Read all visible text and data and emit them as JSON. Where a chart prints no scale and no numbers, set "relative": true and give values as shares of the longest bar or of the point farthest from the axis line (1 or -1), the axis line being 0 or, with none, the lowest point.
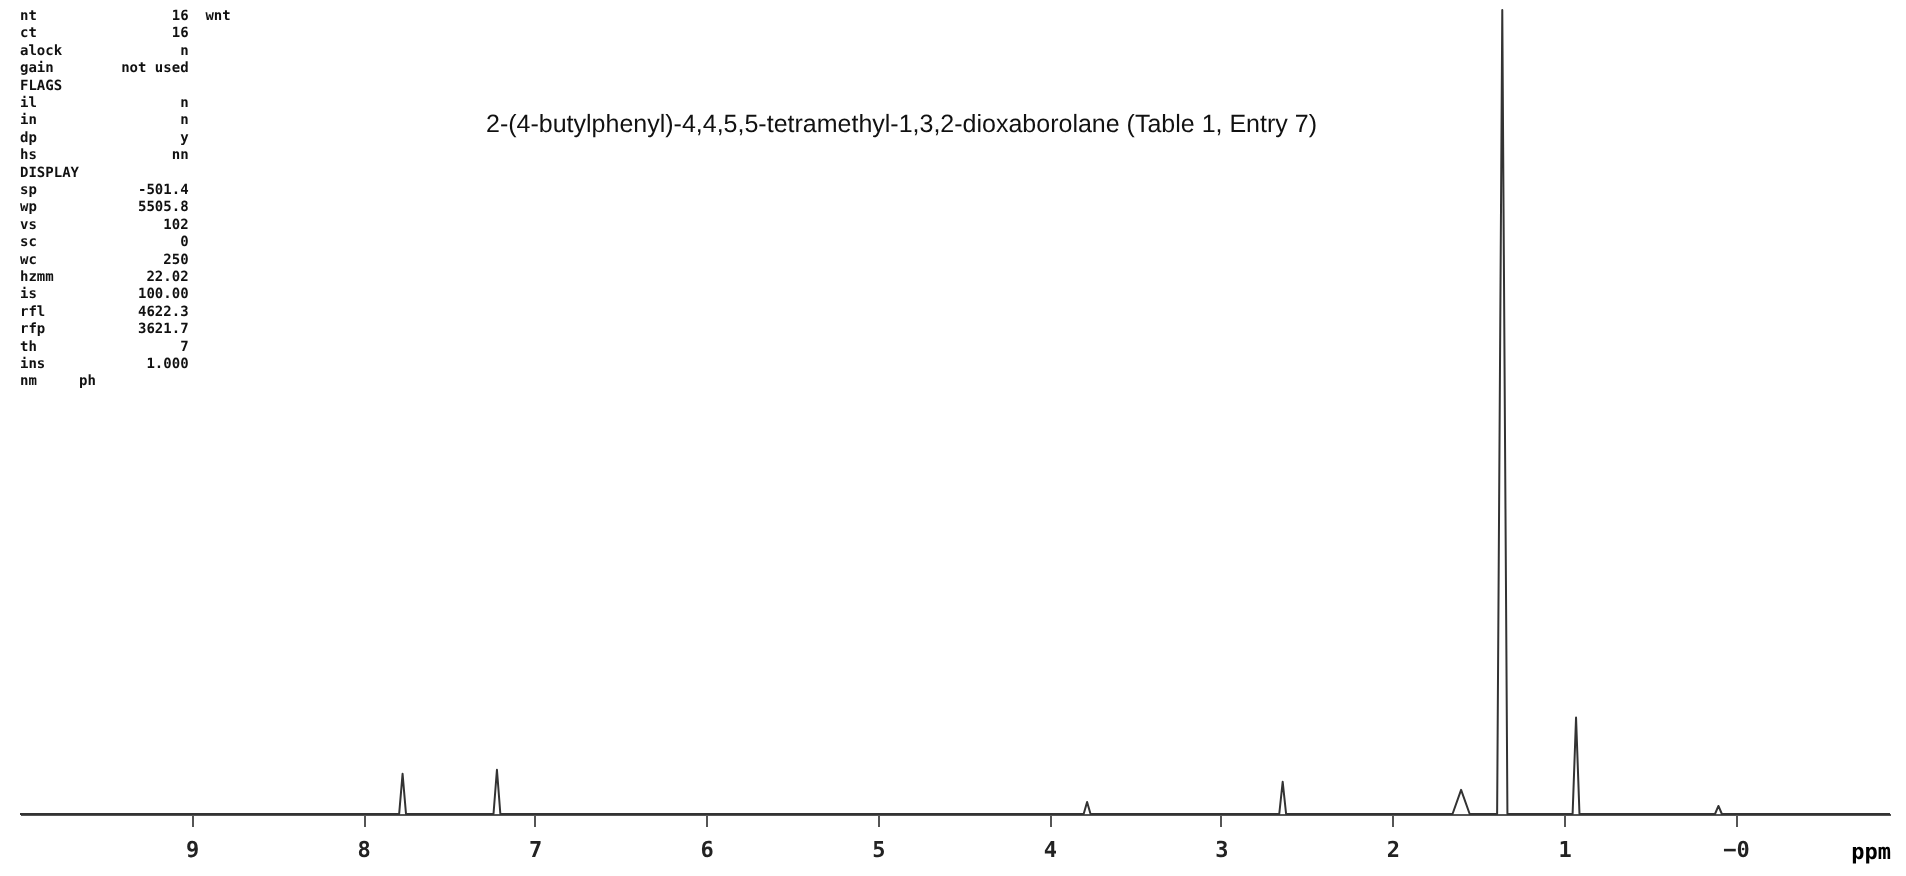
{
  "chart_data": {
    "type": "line",
    "title": "2-(4-butylphenyl)-4,4,5,5-tetramethyl-1,3,2-dioxaborolane (Table 1, Entry 7)",
    "xlabel": "ppm",
    "relative": true,
    "x": [
      10,
      7.79,
      7.77,
      7.75,
      7.24,
      7.22,
      7.2,
      3.8,
      3.78,
      3.76,
      2.66,
      2.64,
      2.62,
      1.65,
      1.6,
      1.55,
      1.39,
      1.36,
      1.33,
      0.95,
      0.93,
      0.91,
      0.12,
      0.1,
      0.08,
      -0.9
    ],
    "series": [
      {
        "color": "#333333",
        "values": [
          0,
          0,
          0.05,
          0,
          0,
          0.055,
          0,
          0,
          0.015,
          0,
          0,
          0.04,
          0,
          0,
          0.03,
          0,
          0,
          1,
          0,
          0,
          0.12,
          0,
          0,
          0.01,
          0,
          0
        ]
      }
    ],
    "xlim": [
      10,
      -0.9
    ],
    "xticks": [
      9,
      8,
      7,
      6,
      5,
      4,
      3,
      2,
      1,
      {
        "value": 0,
        "label": "−0"
      }
    ],
    "grid": false,
    "marker": "none",
    "line_style": "solid",
    "annotations": [
      "nt                16  wnt",
      "ct                16",
      "alock              n",
      "gain        not used",
      "      FLAGS",
      "il                 n",
      "in                 n",
      "dp                 y",
      "hs                nn",
      "     DISPLAY",
      "sp            -501.4",
      "wp            5505.8",
      "vs               102",
      "sc                 0",
      "wc               250",
      "hzmm           22.02",
      "is            100.00",
      "rfl           4622.3",
      "rfp           3621.7",
      "th                 7",
      "ins            1.000",
      "nm     ph"
    ]
  }
}
